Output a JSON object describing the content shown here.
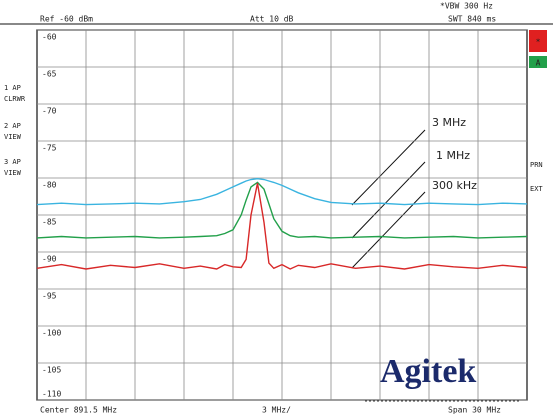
{
  "chart_data": {
    "type": "line",
    "top_labels": [
      "Ref -60 dBm",
      "Att 10 dB",
      "*VBW 300 Hz",
      "SWT 840 ms"
    ],
    "bottom_labels": [
      "Center 891.5 MHz",
      "3 MHz/",
      "Span 30 MHz"
    ],
    "trace_labels": [
      [
        "1 AP",
        "CLRWR"
      ],
      [
        "2 AP",
        "VIEW"
      ],
      [
        "3 AP",
        "VIEW"
      ]
    ],
    "side_labels": [
      "PRN",
      "EXT"
    ],
    "markers": [
      "*",
      "A"
    ],
    "logo": "Agitek",
    "xlim": [
      876.5,
      906.5
    ],
    "ylim": [
      -110,
      -60
    ],
    "yticks": [
      -60,
      -65,
      -70,
      -75,
      -80,
      -85,
      -90,
      -95,
      -100,
      -105,
      -110
    ],
    "grid": true,
    "x": [
      876.5,
      878,
      879.5,
      881,
      882.5,
      884,
      885.5,
      886.5,
      887.5,
      888,
      888.5,
      889,
      889.3,
      889.6,
      890,
      890.4,
      890.7,
      891,
      891.5,
      892,
      892.5,
      893.5,
      894.5,
      896,
      897.5,
      899,
      900.5,
      902,
      903.5,
      905,
      906.5
    ],
    "series": [
      {
        "name": "3 MHz",
        "color": "#3ab4e0",
        "values": [
          -83.6,
          -83.4,
          -83.6,
          -83.5,
          -83.4,
          -83.5,
          -83.2,
          -82.9,
          -82.2,
          -81.7,
          -81.2,
          -80.7,
          -80.4,
          -80.2,
          -80.1,
          -80.2,
          -80.4,
          -80.6,
          -81.0,
          -81.5,
          -82.0,
          -82.8,
          -83.3,
          -83.5,
          -83.4,
          -83.6,
          -83.4,
          -83.5,
          -83.6,
          -83.4,
          -83.5
        ]
      },
      {
        "name": "1 MHz",
        "color": "#22a04a",
        "values": [
          -88.1,
          -87.9,
          -88.1,
          -88.0,
          -87.9,
          -88.1,
          -88.0,
          -87.9,
          -87.8,
          -87.5,
          -87.0,
          -85.0,
          -83.0,
          -81.2,
          -80.6,
          -81.5,
          -83.5,
          -85.5,
          -87.2,
          -87.8,
          -88.0,
          -87.9,
          -88.1,
          -88.0,
          -87.9,
          -88.1,
          -88.0,
          -87.9,
          -88.1,
          -88.0,
          -87.9
        ]
      },
      {
        "name": "300 kHz",
        "color": "#d82828",
        "values": [
          -92.2,
          -91.7,
          -92.3,
          -91.8,
          -92.1,
          -91.6,
          -92.2,
          -91.9,
          -92.3,
          -91.7,
          -92.0,
          -92.1,
          -91.0,
          -85.0,
          -80.7,
          -86.0,
          -91.5,
          -92.2,
          -91.7,
          -92.3,
          -91.8,
          -92.1,
          -91.6,
          -92.2,
          -91.9,
          -92.3,
          -91.7,
          -92.0,
          -92.2,
          -91.8,
          -92.1
        ]
      }
    ]
  }
}
